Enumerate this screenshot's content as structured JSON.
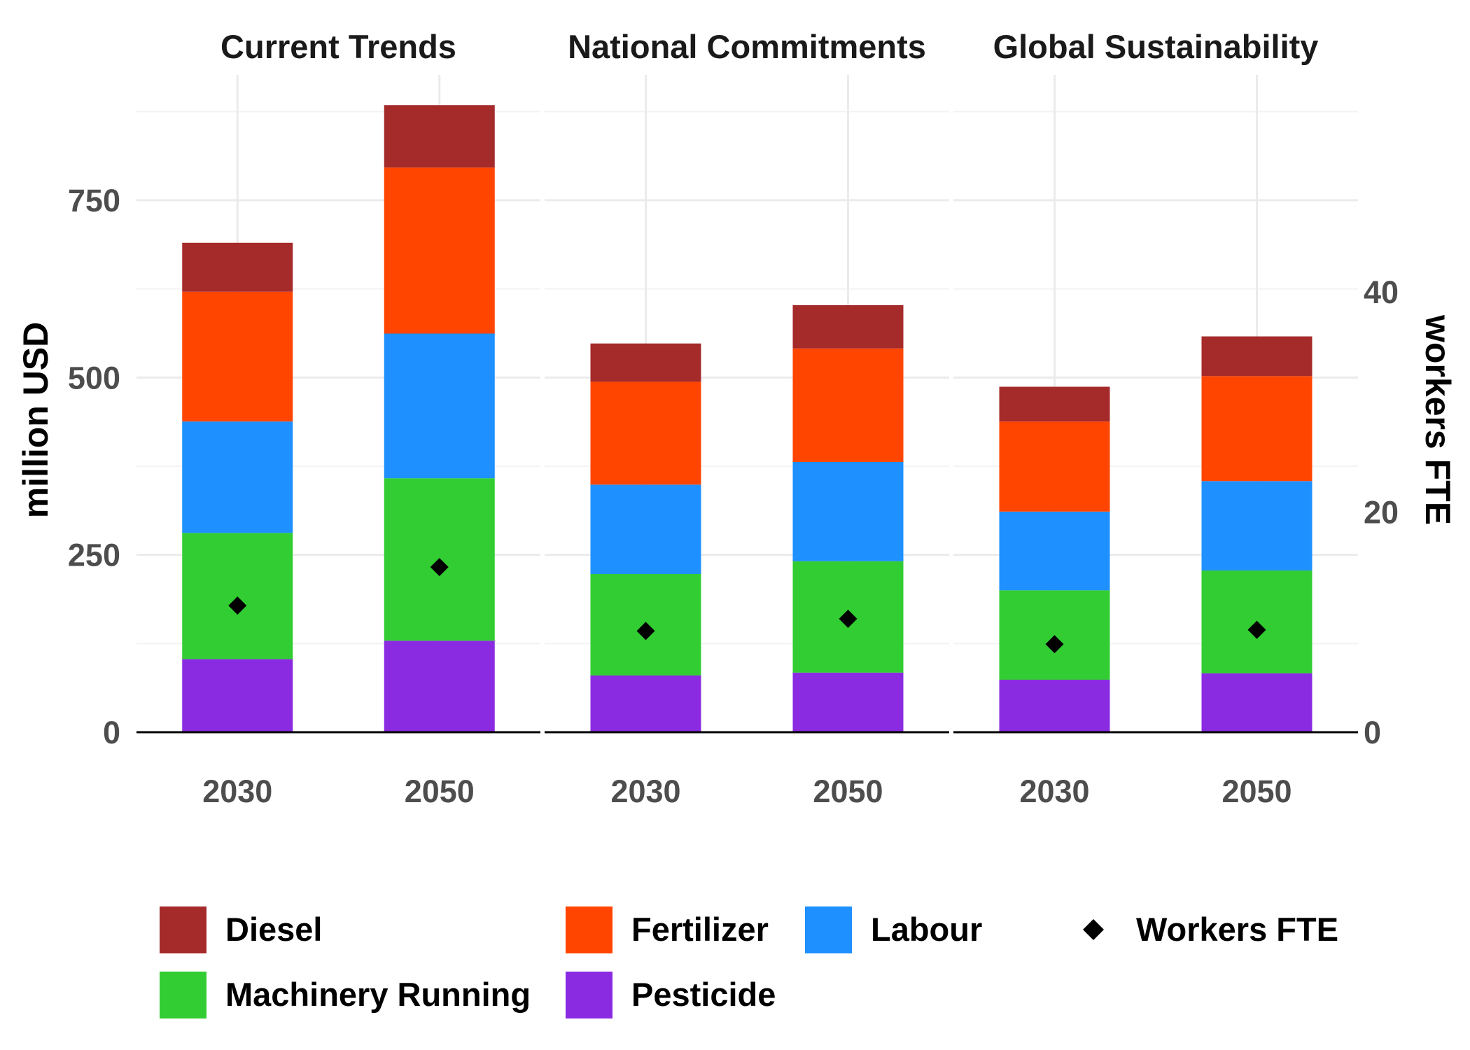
{
  "chart_data": {
    "type": "bar",
    "stacked": true,
    "facets": [
      "Current Trends",
      "National Commitments",
      "Global Sustainability"
    ],
    "categories": [
      "2030",
      "2050"
    ],
    "ylabel": "million USD",
    "y2label": "workers FTE",
    "ylim": [
      0,
      880
    ],
    "yticks": [
      0,
      250,
      500,
      750
    ],
    "y2lim": [
      0,
      56.7
    ],
    "y2ticks": [
      0,
      20,
      40
    ],
    "grid": true,
    "legend_position": "bottom",
    "series": [
      {
        "name": "Pesticide",
        "color": "#8A2BE2",
        "values": [
          [
            103,
            129
          ],
          [
            80,
            84
          ],
          [
            74,
            83
          ]
        ]
      },
      {
        "name": "Machinery Running",
        "color": "#32CD32",
        "values": [
          [
            178,
            229
          ],
          [
            143,
            157
          ],
          [
            126,
            145
          ]
        ]
      },
      {
        "name": "Labour",
        "color": "#1E90FF",
        "values": [
          [
            157,
            204
          ],
          [
            126,
            140
          ],
          [
            111,
            126
          ]
        ]
      },
      {
        "name": "Fertilizer",
        "color": "#FF4500",
        "values": [
          [
            183,
            234
          ],
          [
            145,
            160
          ],
          [
            127,
            148
          ]
        ]
      },
      {
        "name": "Diesel",
        "color": "#A52A2A",
        "values": [
          [
            69,
            88
          ],
          [
            54,
            61
          ],
          [
            49,
            56
          ]
        ]
      }
    ],
    "points": {
      "name": "Workers FTE",
      "color": "#000000",
      "axis": "secondary",
      "values": [
        [
          11.5,
          15.0
        ],
        [
          9.2,
          10.3
        ],
        [
          8.0,
          9.3
        ]
      ]
    },
    "legend_order": [
      "Diesel",
      "Fertilizer",
      "Labour",
      "Workers FTE",
      "Machinery Running",
      "Pesticide"
    ]
  }
}
